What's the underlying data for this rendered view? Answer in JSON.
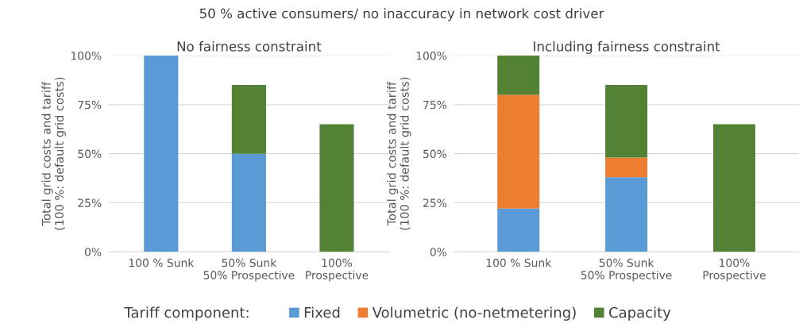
{
  "chart_data": [
    {
      "type": "bar",
      "stacked": true,
      "title": "No fairness constraint",
      "ylabel": "Total grid costs and tariff\n(100 %: default grid costs)",
      "annotations": [
        "50 % active consumers/ no inaccuracy in network cost driver"
      ],
      "categories": [
        "100 % Sunk",
        "50% Sunk\n50% Prospective",
        "100%\nProspective"
      ],
      "series": [
        {
          "color": "#5b9bd5",
          "values": [
            100,
            50,
            null
          ]
        },
        {
          "color": "#548235",
          "values": [
            null,
            35,
            65
          ]
        }
      ],
      "ylim": [
        0,
        100
      ],
      "yticks": [
        {
          "value": 0,
          "label": "0%"
        },
        {
          "value": 25,
          "label": "25%"
        },
        {
          "value": 50,
          "label": "50%"
        },
        {
          "value": 75,
          "label": "75%"
        },
        {
          "value": 100,
          "label": "100%"
        }
      ],
      "grid": "y"
    },
    {
      "type": "bar",
      "stacked": true,
      "title": "Including fairness constraint",
      "ylabel": "Total grid costs and tariff\n(100 %: default grid costs)",
      "categories": [
        "100 % Sunk",
        "50% Sunk\n50% Prospective",
        "100%\nProspective"
      ],
      "series": [
        {
          "name": "Fixed",
          "color": "#5b9bd5",
          "values": [
            22,
            38,
            null
          ]
        },
        {
          "name": "Volumetric (no-netmetering)",
          "color": "#ed7d31",
          "values": [
            58,
            10,
            null
          ]
        },
        {
          "name": "Capacity",
          "color": "#548235",
          "values": [
            20,
            37,
            65
          ]
        }
      ],
      "ylim": [
        0,
        100
      ],
      "yticks": [
        {
          "value": 0,
          "label": "0%"
        },
        {
          "value": 25,
          "label": "25%"
        },
        {
          "value": 50,
          "label": "50%"
        },
        {
          "value": 75,
          "label": "75%"
        },
        {
          "value": 100,
          "label": "100%"
        }
      ],
      "grid": "y",
      "legend": "bottom",
      "legend_title": "Tariff component:"
    }
  ]
}
